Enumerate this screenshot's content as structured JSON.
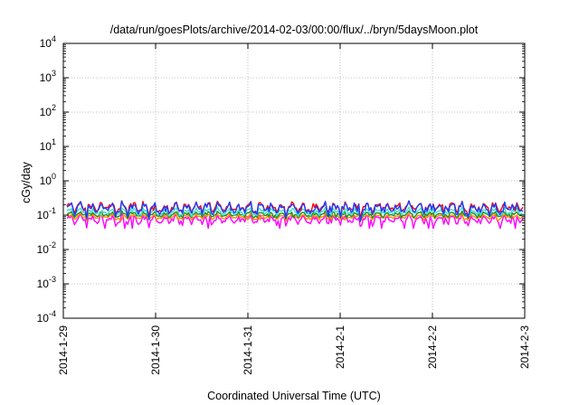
{
  "chart_data": {
    "type": "line",
    "title": "/data/run/goesPlots/archive/2014-02-03/00:00/flux/../bryn/5daysMoon.plot",
    "xlabel": "Coordinated Universal Time (UTC)",
    "ylabel": "cGy/day",
    "y_scale": "log",
    "ylim": [
      0.0001,
      10000
    ],
    "xlim": [
      "2014-1-29",
      "2014-2-3"
    ],
    "grid": true,
    "x_ticks": [
      "2014-1-29",
      "2014-1-30",
      "2014-1-31",
      "2014-2-1",
      "2014-2-2",
      "2014-2-3"
    ],
    "y_ticks": [
      {
        "value": 0.0001,
        "base": "10",
        "exp": "-4"
      },
      {
        "value": 0.001,
        "base": "10",
        "exp": "-3"
      },
      {
        "value": 0.01,
        "base": "10",
        "exp": "-2"
      },
      {
        "value": 0.1,
        "base": "10",
        "exp": "-1"
      },
      {
        "value": 1,
        "base": "10",
        "exp": "0"
      },
      {
        "value": 10,
        "base": "10",
        "exp": "1"
      },
      {
        "value": 100,
        "base": "10",
        "exp": "2"
      },
      {
        "value": 1000,
        "base": "10",
        "exp": "3"
      },
      {
        "value": 10000,
        "base": "10",
        "exp": "4"
      }
    ],
    "series": [
      {
        "color": "#ff00ff",
        "baseline": 0.075,
        "amplitude": 0.03
      },
      {
        "color": "#ff8c00",
        "baseline": 0.09,
        "amplitude": 0.02
      },
      {
        "color": "#228b22",
        "baseline": 0.105,
        "amplitude": 0.025
      },
      {
        "color": "#40e0d0",
        "baseline": 0.125,
        "amplitude": 0.04
      },
      {
        "color": "#ff0000",
        "baseline": 0.17,
        "amplitude": 0.08
      },
      {
        "color": "#1e3cff",
        "baseline": 0.16,
        "amplitude": 0.08
      }
    ]
  }
}
